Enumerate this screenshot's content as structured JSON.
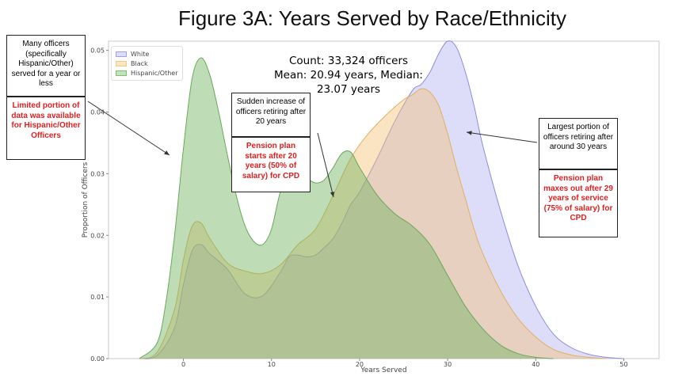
{
  "title": "Figure 3A: Years Served by Race/Ethnicity",
  "stats": {
    "count": "Count: 33,324 officers",
    "mean_median": "Mean: 20.94 years, Median: 23.07 years"
  },
  "annotations": {
    "left_note": "Many officers (specifically Hispanic/Other) served for a year or less",
    "left_red": "Limited portion of data was available for Hispanic/Other Officers",
    "mid_note": "Sudden increase of officers retiring after 20 years",
    "mid_red": "Pension plan starts after 20 years (50% of salary) for CPD",
    "right_note": "Largest portion of officers retiring after around 30 years",
    "right_red": "Pension plan maxes out after 29 years of service (75% of salary) for CPD"
  },
  "colors": {
    "white": "#9f9ff0",
    "black": "#f5c97a",
    "hispanic": "#7fbf6f",
    "annotation_red": "#e02020"
  },
  "chart_data": {
    "type": "area",
    "xlabel": "Years Served",
    "ylabel": "Proportion of Officers",
    "xlim": [
      -8.5,
      54
    ],
    "ylim": [
      0,
      0.0515
    ],
    "xticks": [
      "0",
      "10",
      "20",
      "30",
      "40",
      "50"
    ],
    "yticks": [
      "0.00",
      "0.01",
      "0.02",
      "0.03",
      "0.04",
      "0.05"
    ],
    "legend_position": "top-left",
    "grid": false,
    "series": [
      {
        "name": "White",
        "color": "#9f9ff0",
        "x": [
          -5,
          -3,
          -1,
          0,
          1,
          2,
          3,
          5,
          7,
          9,
          11,
          12,
          13,
          14,
          15,
          16,
          17,
          18,
          19,
          20,
          22,
          24,
          26,
          27,
          28,
          29,
          30,
          31,
          32,
          33,
          34,
          36,
          38,
          40,
          42,
          44,
          46,
          48,
          50
        ],
        "values": [
          0,
          0.0005,
          0.005,
          0.012,
          0.0175,
          0.0185,
          0.017,
          0.0145,
          0.0105,
          0.0102,
          0.014,
          0.0165,
          0.0168,
          0.0165,
          0.0168,
          0.018,
          0.0195,
          0.022,
          0.025,
          0.027,
          0.0325,
          0.0385,
          0.0435,
          0.0445,
          0.0465,
          0.0495,
          0.0515,
          0.0505,
          0.0465,
          0.041,
          0.0345,
          0.024,
          0.015,
          0.0085,
          0.004,
          0.0018,
          0.0007,
          0.0002,
          0
        ]
      },
      {
        "name": "Black",
        "color": "#f5c97a",
        "x": [
          -5,
          -3,
          -1,
          0,
          1,
          2,
          3,
          5,
          7,
          9,
          11,
          13,
          15,
          17,
          19,
          21,
          23,
          25,
          26,
          27,
          28,
          29,
          30,
          31,
          32,
          33,
          34,
          36,
          38,
          40,
          42,
          44,
          46,
          48
        ],
        "values": [
          0,
          0.001,
          0.008,
          0.016,
          0.0215,
          0.022,
          0.0195,
          0.0155,
          0.0142,
          0.0138,
          0.0152,
          0.0185,
          0.021,
          0.0265,
          0.0325,
          0.0365,
          0.0395,
          0.042,
          0.0428,
          0.0438,
          0.0432,
          0.041,
          0.0365,
          0.031,
          0.026,
          0.021,
          0.017,
          0.011,
          0.0065,
          0.0035,
          0.0015,
          0.0006,
          0.0002,
          0
        ]
      },
      {
        "name": "Hispanic/Other",
        "color": "#7fbf6f",
        "x": [
          -5,
          -3,
          -2,
          -1,
          0,
          1,
          2,
          3,
          4,
          5,
          6,
          7,
          8,
          9,
          10,
          11,
          12,
          13,
          14,
          15,
          16,
          17,
          18,
          19,
          20,
          22,
          24,
          26,
          28,
          30,
          32,
          34,
          36,
          38,
          40,
          42
        ],
        "values": [
          0,
          0.0025,
          0.009,
          0.02,
          0.034,
          0.0455,
          0.0488,
          0.046,
          0.04,
          0.033,
          0.0265,
          0.0215,
          0.019,
          0.0185,
          0.021,
          0.027,
          0.0298,
          0.0305,
          0.0293,
          0.0285,
          0.029,
          0.031,
          0.0333,
          0.0335,
          0.031,
          0.0265,
          0.0235,
          0.0215,
          0.0185,
          0.0135,
          0.0085,
          0.0048,
          0.0022,
          0.0008,
          0.0002,
          0
        ]
      }
    ]
  }
}
